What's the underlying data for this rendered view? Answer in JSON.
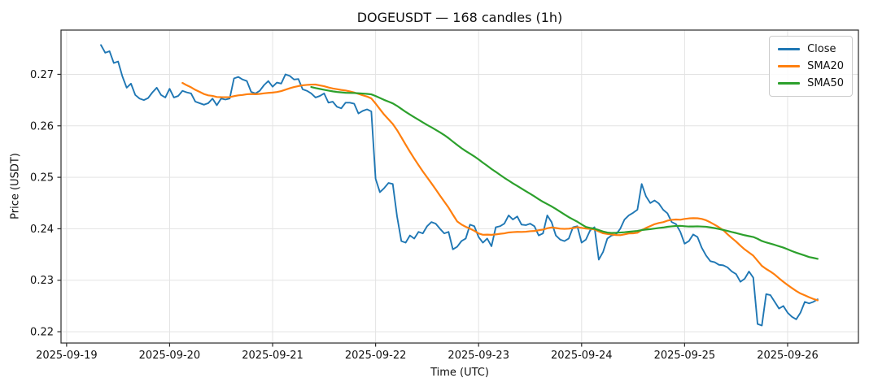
{
  "chart_data": {
    "type": "line",
    "title": "DOGEUSDT — 168 candles (1h)",
    "xlabel": "Time (UTC)",
    "ylabel": "Price (USDT)",
    "symbol": "DOGEUSDT",
    "num_candles": 168,
    "interval": "1h",
    "x_start_utc": "2025-09-19 08:00",
    "x_tick_labels": [
      "2025-09-19",
      "2025-09-20",
      "2025-09-21",
      "2025-09-22",
      "2025-09-23",
      "2025-09-24",
      "2025-09-25",
      "2025-09-26"
    ],
    "x_tick_hours": [
      0,
      24,
      48,
      72,
      96,
      120,
      144,
      168
    ],
    "y_tick_labels": [
      "0.22",
      "0.23",
      "0.24",
      "0.25",
      "0.26",
      "0.27"
    ],
    "y_ticks": [
      0.22,
      0.23,
      0.24,
      0.25,
      0.26,
      0.27
    ],
    "ylim": [
      0.2178,
      0.2786
    ],
    "xlim_hours": [
      -1.3,
      184.5
    ],
    "grid": true,
    "grid_color": "#e3e3e3",
    "spine_color": "#2a2a2a",
    "legend_position": "upper right",
    "series": [
      {
        "name": "Close",
        "color": "#1f77b4",
        "kind": "raw"
      },
      {
        "name": "SMA20",
        "color": "#ff7f0e",
        "kind": "sma",
        "period": 20
      },
      {
        "name": "SMA50",
        "color": "#2ca02c",
        "kind": "sma",
        "period": 50
      }
    ],
    "close": [
      0.2757,
      0.2742,
      0.2745,
      0.2722,
      0.2725,
      0.2696,
      0.2674,
      0.2682,
      0.266,
      0.2653,
      0.265,
      0.2654,
      0.2665,
      0.2674,
      0.266,
      0.2655,
      0.2672,
      0.2655,
      0.2658,
      0.2668,
      0.2665,
      0.2663,
      0.2647,
      0.2644,
      0.2641,
      0.2644,
      0.2653,
      0.264,
      0.2653,
      0.2651,
      0.2653,
      0.2692,
      0.2695,
      0.269,
      0.2687,
      0.2666,
      0.2663,
      0.2668,
      0.2679,
      0.2687,
      0.2676,
      0.2684,
      0.2682,
      0.27,
      0.2697,
      0.269,
      0.2691,
      0.2671,
      0.2668,
      0.2663,
      0.2655,
      0.2658,
      0.2663,
      0.2645,
      0.2647,
      0.2637,
      0.2634,
      0.2645,
      0.2645,
      0.2643,
      0.2624,
      0.2629,
      0.2632,
      0.2628,
      0.2497,
      0.2471,
      0.2479,
      0.2489,
      0.2487,
      0.2424,
      0.2376,
      0.2373,
      0.2387,
      0.2381,
      0.2394,
      0.2391,
      0.2405,
      0.2413,
      0.241,
      0.24,
      0.2391,
      0.2394,
      0.236,
      0.2365,
      0.2376,
      0.2381,
      0.2408,
      0.2405,
      0.2384,
      0.2373,
      0.2381,
      0.2366,
      0.2403,
      0.2405,
      0.241,
      0.2426,
      0.2418,
      0.2424,
      0.2408,
      0.2407,
      0.241,
      0.2405,
      0.2387,
      0.2391,
      0.2426,
      0.2413,
      0.2387,
      0.2379,
      0.2376,
      0.2381,
      0.2403,
      0.2405,
      0.2373,
      0.2379,
      0.2397,
      0.2403,
      0.234,
      0.2355,
      0.2381,
      0.2387,
      0.2389,
      0.24,
      0.2418,
      0.2426,
      0.2431,
      0.2437,
      0.2487,
      0.2463,
      0.245,
      0.2455,
      0.2449,
      0.2437,
      0.243,
      0.2413,
      0.2409,
      0.2394,
      0.2371,
      0.2376,
      0.2389,
      0.2384,
      0.2363,
      0.2348,
      0.2337,
      0.2335,
      0.233,
      0.2329,
      0.2325,
      0.2317,
      0.2312,
      0.2297,
      0.2303,
      0.2317,
      0.2305,
      0.2215,
      0.2212,
      0.2273,
      0.2271,
      0.2258,
      0.2245,
      0.225,
      0.2237,
      0.2229,
      0.2224,
      0.2237,
      0.2258,
      0.2255,
      0.2258,
      0.2263
    ]
  }
}
